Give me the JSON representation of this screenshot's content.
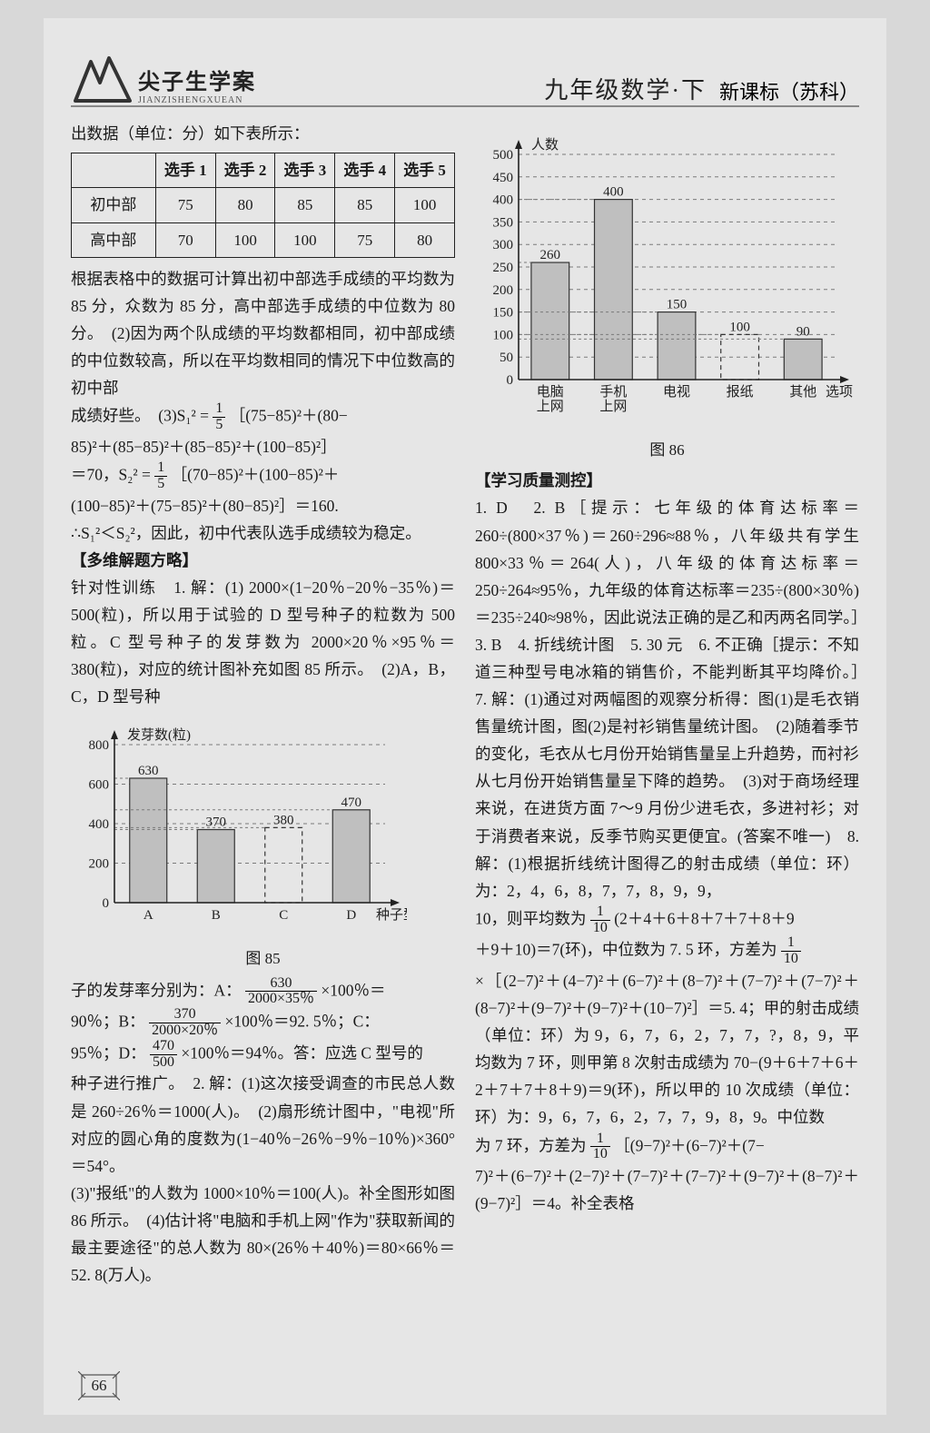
{
  "header": {
    "logo_text": "尖子生学案",
    "logo_pinyin": "JIANZISHENGXUEAN",
    "title_main": "九年级数学·下",
    "title_sub": "新课标（苏科）"
  },
  "left": {
    "intro": "出数据（单位：分）如下表所示：",
    "table": {
      "columns": [
        "",
        "选手 1",
        "选手 2",
        "选手 3",
        "选手 4",
        "选手 5"
      ],
      "rows": [
        [
          "初中部",
          "75",
          "80",
          "85",
          "85",
          "100"
        ],
        [
          "高中部",
          "70",
          "100",
          "100",
          "75",
          "80"
        ]
      ]
    },
    "para1": "根据表格中的数据可计算出初中部选手成绩的平均数为 85 分，众数为 85 分，高中部选手成绩的中位数为 80 分。　(2)因为两个队成绩的平均数都相同，初中部成绩的中位数较高，所以在平均数相同的情况下中位数高的初中部",
    "para2a": "成绩好些。　(3)S₁² =",
    "para2_frac_n": "1",
    "para2_frac_d": "5",
    "para2b": "［(75−85)²＋(80−",
    "para3": "85)²＋(85−85)²＋(85−85)²＋(100−85)²］",
    "para4a": "＝70，S₂² =",
    "para4_frac_n": "1",
    "para4_frac_d": "5",
    "para4b": "［(70−85)²＋(100−85)²＋",
    "para5": "(100−85)²＋(75−85)²＋(80−85)²］＝160.",
    "para6": "∴S₁²＜S₂²，因此，初中代表队选手成绩较为稳定。",
    "sec1_head": "【多维解题方略】",
    "sec1_p1": "针对性训练　1. 解：(1) 2000×(1−20％−20％−35％)＝500(粒)，所以用于试验的 D 型号种子的粒数为 500 粒。C 型号种子的发芽数为 2000×20％×95％＝380(粒)，对应的统计图补充如图 85 所示。　(2)A，B，C，D 型号种",
    "chart85": {
      "type": "bar",
      "ylabel": "发芽数(粒)",
      "xlabel": "种子型号",
      "categories": [
        "A",
        "B",
        "C",
        "D"
      ],
      "values": [
        630,
        370,
        380,
        470
      ],
      "value_labels": [
        "630",
        "370",
        "380",
        "470"
      ],
      "ylim": [
        0,
        800
      ],
      "ytick_step": 200,
      "yticks": [
        "0",
        "200",
        "400",
        "600",
        "800"
      ],
      "bar_color": "#bfbfbf",
      "dashed_bar_index": 2,
      "grid_color": "#7a7a7a",
      "axis_color": "#222222",
      "bar_width": 0.55,
      "label_fontsize": 15
    },
    "chart85_caption": "图 85",
    "sec1_p2a": "子的发芽率分别为：A：",
    "frac_a_n": "630",
    "frac_a_d": "2000×35％",
    "sec1_p2b": "×100％＝",
    "sec1_p3a": "90％；B：",
    "frac_b_n": "370",
    "frac_b_d": "2000×20％",
    "sec1_p3b": "×100％＝92. 5％；C：",
    "sec1_p4a": "95％；D：",
    "frac_d_n": "470",
    "frac_d_d": "500",
    "sec1_p4b": "×100％＝94％。答：应选 C 型号的",
    "sec1_p5": "种子进行推广。　2. 解：(1)这次接受调查的市民总人数是 260÷26％＝1000(人)。　(2)扇形统计图中，\"电视\"所对应的圆心角的度数为(1−40％−26％−9％−10％)×360°＝54°。",
    "sec1_p6": "(3)\"报纸\"的人数为 1000×10％＝100(人)。补全图形如图 86 所示。　(4)估计将\"电脑和手机上网\"作为\"获取新闻的最主要途径\"的总人数为 80×(26％＋40％)＝80×66％＝52. 8(万人)。"
  },
  "right": {
    "chart86": {
      "type": "bar",
      "ylabel": "人数",
      "xlabel": "选项",
      "categories": [
        "电脑\n上网",
        "手机\n上网",
        "电视",
        "报纸",
        "其他"
      ],
      "values": [
        260,
        400,
        150,
        100,
        90
      ],
      "value_labels": [
        "260",
        "400",
        "150",
        "100",
        "90"
      ],
      "ylim": [
        0,
        500
      ],
      "ytick_step": 50,
      "yticks": [
        "0",
        "50",
        "100",
        "150",
        "200",
        "250",
        "300",
        "350",
        "400",
        "450",
        "500"
      ],
      "bar_color": "#bfbfbf",
      "dashed_bar_index": 3,
      "grid_color": "#7a7a7a",
      "axis_color": "#222222",
      "bar_width": 0.6,
      "label_fontsize": 15
    },
    "chart86_caption": "图 86",
    "sec2_head": "【学习质量测控】",
    "p1": "1. D　2. B［提示：七年级的体育达标率＝260÷(800×37％)＝260÷296≈88％，八年级共有学生 800×33％＝264(人)，八年级的体育达标率＝250÷264≈95％，九年级的体育达标率＝235÷(800×30％)＝235÷240≈98％，因此说法正确的是乙和丙两名同学。］　3. B　4. 折线统计图　5. 30 元　6. 不正确［提示：不知道三种型号电冰箱的销售价，不能判断其平均降价。］　7. 解：(1)通过对两幅图的观察分析得：图(1)是毛衣销售量统计图，图(2)是衬衫销售量统计图。　(2)随着季节的变化，毛衣从七月份开始销售量呈上升趋势，而衬衫从七月份开始销售量呈下降的趋势。　(3)对于商场经理来说，在进货方面 7～9 月份少进毛衣，多进衬衫；对于消费者来说，反季节购买更便宜。(答案不唯一)　8. 解：(1)根据折线统计图得乙的射击成绩（单位：环）为：2，4，6，8，7，7，8，9，9，",
    "p2a": "10，则平均数为",
    "frac10a_n": "1",
    "frac10a_d": "10",
    "p2b": "(2＋4＋6＋8＋7＋7＋8＋9",
    "p3a": "＋9＋10)＝7(环)，中位数为 7. 5 环，方差为",
    "frac10b_n": "1",
    "frac10b_d": "10",
    "p4": "×［(2−7)²＋(4−7)²＋(6−7)²＋(8−7)²＋(7−7)²＋(7−7)²＋(8−7)²＋(9−7)²＋(9−7)²＋(10−7)²］＝5. 4；甲的射击成绩（单位：环）为 9，6，7，6，2，7，7，?，8，9，平均数为 7 环，则甲第 8 次射击成绩为 70−(9＋6＋7＋6＋2＋7＋7＋8＋9)＝9(环)，所以甲的 10 次成绩（单位：环）为：9，6，7，6，2，7，7，9，8，9。中位数",
    "p5a": "为 7 环，方差为",
    "frac10c_n": "1",
    "frac10c_d": "10",
    "p5b": "［(9−7)²＋(6−7)²＋(7−",
    "p6": "7)²＋(6−7)²＋(2−7)²＋(7−7)²＋(7−7)²＋(9−7)²＋(8−7)²＋(9−7)²］＝4。补全表格"
  },
  "page_number": "66",
  "colors": {
    "page_bg": "#e6e6e6",
    "body_bg": "#d8d8d8",
    "text": "#1a1a1a",
    "axis": "#222222",
    "grid": "#7a7a7a",
    "bar_fill": "#bfbfbf"
  }
}
